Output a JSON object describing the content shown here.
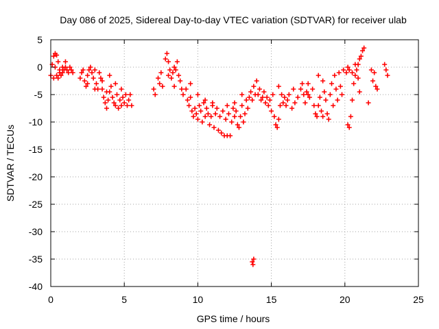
{
  "chart_data": {
    "type": "scatter",
    "title": "Day 086 of 2025, Sidereal Day-to-day VTEC variation (SDTVAR) for receiver ulab",
    "xlabel": "GPS time / hours",
    "ylabel": "SDTVAR / TECUs",
    "xlim": [
      0,
      25
    ],
    "ylim": [
      -40,
      5
    ],
    "xticks": [
      0,
      5,
      10,
      15,
      20,
      25
    ],
    "xtick_labels": [
      "0",
      "5",
      "10",
      "15",
      "20",
      "25"
    ],
    "yticks": [
      5,
      0,
      -5,
      -10,
      -15,
      -20,
      -25,
      -30,
      -35,
      -40
    ],
    "ytick_labels": [
      "5",
      "0",
      "-5",
      "-10",
      "-15",
      "-20",
      "-25",
      "-30",
      "-35",
      "-40"
    ],
    "grid": true,
    "marker": "plus",
    "color": "#ff0000",
    "series": [
      {
        "name": "SDTVAR",
        "points": [
          [
            0.0,
            -1.5
          ],
          [
            0.1,
            0.5
          ],
          [
            0.2,
            2.0
          ],
          [
            0.3,
            2.5
          ],
          [
            0.4,
            2.2
          ],
          [
            0.5,
            1.0
          ],
          [
            0.6,
            -0.5
          ],
          [
            0.7,
            -1.5
          ],
          [
            0.8,
            -1.0
          ],
          [
            0.9,
            -0.5
          ],
          [
            1.0,
            0.0
          ],
          [
            1.1,
            -0.5
          ],
          [
            1.2,
            -1.0
          ],
          [
            1.3,
            0.0
          ],
          [
            1.4,
            -0.5
          ],
          [
            1.5,
            -1.0
          ],
          [
            0.2,
            -2.0
          ],
          [
            0.4,
            -1.5
          ],
          [
            0.6,
            -1.0
          ],
          [
            0.8,
            0.0
          ],
          [
            1.0,
            1.0
          ],
          [
            0.3,
            0.0
          ],
          [
            0.5,
            -2.0
          ],
          [
            2.0,
            -2.0
          ],
          [
            2.1,
            -1.0
          ],
          [
            2.2,
            -0.5
          ],
          [
            2.3,
            -2.5
          ],
          [
            2.4,
            -3.5
          ],
          [
            2.5,
            -1.5
          ],
          [
            2.6,
            -0.5
          ],
          [
            2.7,
            0.0
          ],
          [
            2.8,
            -1.0
          ],
          [
            2.9,
            -2.0
          ],
          [
            3.0,
            -0.5
          ],
          [
            3.1,
            -3.0
          ],
          [
            3.2,
            -4.0
          ],
          [
            3.3,
            -1.0
          ],
          [
            3.4,
            -2.0
          ],
          [
            3.5,
            -4.0
          ],
          [
            3.6,
            -5.5
          ],
          [
            3.7,
            -6.5
          ],
          [
            3.8,
            -7.5
          ],
          [
            3.9,
            -6.0
          ],
          [
            4.0,
            -4.5
          ],
          [
            4.1,
            -3.5
          ],
          [
            4.2,
            -5.5
          ],
          [
            4.3,
            -6.5
          ],
          [
            4.4,
            -7.0
          ],
          [
            4.5,
            -5.0
          ],
          [
            4.6,
            -7.5
          ],
          [
            4.7,
            -6.0
          ],
          [
            4.8,
            -7.0
          ],
          [
            4.9,
            -5.5
          ],
          [
            5.0,
            -6.5
          ],
          [
            5.1,
            -5.0
          ],
          [
            5.2,
            -7.0
          ],
          [
            5.3,
            -6.0
          ],
          [
            5.4,
            -5.0
          ],
          [
            5.5,
            -7.0
          ],
          [
            3.0,
            -4.0
          ],
          [
            3.5,
            -2.5
          ],
          [
            4.0,
            -1.5
          ],
          [
            4.4,
            -3.0
          ],
          [
            4.8,
            -4.0
          ],
          [
            2.5,
            -3.0
          ],
          [
            3.8,
            -4.5
          ],
          [
            7.0,
            -4.0
          ],
          [
            7.1,
            -5.0
          ],
          [
            7.3,
            -2.0
          ],
          [
            7.5,
            -1.0
          ],
          [
            7.6,
            -3.5
          ],
          [
            7.8,
            1.5
          ],
          [
            7.9,
            2.5
          ],
          [
            8.0,
            1.0
          ],
          [
            8.1,
            -0.5
          ],
          [
            8.2,
            -2.0
          ],
          [
            8.3,
            -1.0
          ],
          [
            8.4,
            0.0
          ],
          [
            8.5,
            -0.5
          ],
          [
            8.6,
            1.0
          ],
          [
            8.7,
            -1.5
          ],
          [
            8.8,
            -2.5
          ],
          [
            8.9,
            -4.0
          ],
          [
            7.4,
            -3.0
          ],
          [
            8.0,
            -1.5
          ],
          [
            8.4,
            -3.5
          ],
          [
            9.0,
            -5.0
          ],
          [
            9.2,
            -4.0
          ],
          [
            9.3,
            -6.0
          ],
          [
            9.4,
            -7.0
          ],
          [
            9.5,
            -5.5
          ],
          [
            9.6,
            -8.0
          ],
          [
            9.7,
            -9.0
          ],
          [
            9.8,
            -7.5
          ],
          [
            9.9,
            -8.5
          ],
          [
            10.0,
            -9.5
          ],
          [
            10.1,
            -7.0
          ],
          [
            10.2,
            -8.0
          ],
          [
            10.3,
            -10.0
          ],
          [
            10.4,
            -6.5
          ],
          [
            10.5,
            -9.0
          ],
          [
            10.6,
            -7.5
          ],
          [
            10.7,
            -8.5
          ],
          [
            10.8,
            -10.5
          ],
          [
            10.9,
            -9.0
          ],
          [
            11.0,
            -7.0
          ],
          [
            11.1,
            -11.0
          ],
          [
            11.2,
            -8.5
          ],
          [
            11.3,
            -7.5
          ],
          [
            11.4,
            -11.5
          ],
          [
            11.5,
            -9.0
          ],
          [
            11.6,
            -12.0
          ],
          [
            11.7,
            -8.0
          ],
          [
            11.8,
            -12.5
          ],
          [
            11.9,
            -9.5
          ],
          [
            12.0,
            -12.5
          ],
          [
            12.1,
            -8.5
          ],
          [
            12.2,
            -12.5
          ],
          [
            12.3,
            -10.0
          ],
          [
            12.4,
            -7.5
          ],
          [
            12.5,
            -9.0
          ],
          [
            12.6,
            -8.0
          ],
          [
            12.7,
            -10.5
          ],
          [
            12.8,
            -11.0
          ],
          [
            12.9,
            -9.0
          ],
          [
            13.0,
            -7.0
          ],
          [
            13.1,
            -10.0
          ],
          [
            13.2,
            -8.5
          ],
          [
            13.3,
            -6.0
          ],
          [
            13.4,
            -7.5
          ],
          [
            13.5,
            -5.5
          ],
          [
            13.6,
            -4.5
          ],
          [
            13.7,
            -6.0
          ],
          [
            13.8,
            -3.5
          ],
          [
            13.9,
            -5.0
          ],
          [
            14.0,
            -2.5
          ],
          [
            9.5,
            -3.0
          ],
          [
            10.0,
            -5.0
          ],
          [
            10.5,
            -6.0
          ],
          [
            11.0,
            -6.5
          ],
          [
            12.0,
            -7.0
          ],
          [
            12.5,
            -6.5
          ],
          [
            13.0,
            -5.0
          ],
          [
            13.7,
            -35.5
          ],
          [
            13.8,
            -35.0
          ],
          [
            13.75,
            -36.0
          ],
          [
            14.1,
            -5.0
          ],
          [
            14.2,
            -4.0
          ],
          [
            14.3,
            -6.0
          ],
          [
            14.4,
            -5.5
          ],
          [
            14.5,
            -4.5
          ],
          [
            14.6,
            -6.5
          ],
          [
            14.7,
            -5.5
          ],
          [
            14.8,
            -7.0
          ],
          [
            14.9,
            -6.0
          ],
          [
            15.0,
            -8.0
          ],
          [
            15.1,
            -5.0
          ],
          [
            15.2,
            -9.0
          ],
          [
            15.3,
            -10.5
          ],
          [
            15.4,
            -11.0
          ],
          [
            15.5,
            -9.5
          ],
          [
            15.6,
            -7.0
          ],
          [
            15.7,
            -5.0
          ],
          [
            15.8,
            -6.5
          ],
          [
            15.9,
            -5.5
          ],
          [
            16.0,
            -7.0
          ],
          [
            16.1,
            -6.0
          ],
          [
            16.2,
            -5.0
          ],
          [
            16.4,
            -7.5
          ],
          [
            16.6,
            -6.5
          ],
          [
            16.8,
            -5.5
          ],
          [
            17.0,
            -4.0
          ],
          [
            17.1,
            -3.0
          ],
          [
            17.2,
            -5.0
          ],
          [
            17.3,
            -6.5
          ],
          [
            17.4,
            -4.5
          ],
          [
            17.5,
            -3.0
          ],
          [
            17.6,
            -5.5
          ],
          [
            17.8,
            -4.0
          ],
          [
            17.9,
            -7.0
          ],
          [
            18.0,
            -8.5
          ],
          [
            18.1,
            -9.0
          ],
          [
            18.2,
            -7.0
          ],
          [
            18.3,
            -5.5
          ],
          [
            18.4,
            -8.0
          ],
          [
            18.5,
            -9.0
          ],
          [
            18.6,
            -4.5
          ],
          [
            18.7,
            -6.0
          ],
          [
            18.8,
            -8.5
          ],
          [
            18.9,
            -9.5
          ],
          [
            19.0,
            -5.0
          ],
          [
            19.1,
            -3.0
          ],
          [
            19.2,
            -7.0
          ],
          [
            19.3,
            -1.5
          ],
          [
            19.4,
            -4.0
          ],
          [
            19.5,
            -6.0
          ],
          [
            19.6,
            -1.0
          ],
          [
            19.7,
            -3.5
          ],
          [
            19.8,
            -5.0
          ],
          [
            19.9,
            -0.5
          ],
          [
            18.2,
            -1.5
          ],
          [
            18.5,
            -2.5
          ],
          [
            17.5,
            -5.0
          ],
          [
            16.5,
            -4.0
          ],
          [
            15.5,
            -3.5
          ],
          [
            20.2,
            -10.5
          ],
          [
            20.3,
            -11.0
          ],
          [
            20.4,
            -9.0
          ],
          [
            20.5,
            -6.0
          ],
          [
            20.6,
            -3.0
          ],
          [
            20.7,
            -1.5
          ],
          [
            20.8,
            -0.5
          ],
          [
            20.9,
            0.5
          ],
          [
            21.0,
            1.5
          ],
          [
            21.1,
            2.0
          ],
          [
            21.2,
            3.0
          ],
          [
            21.3,
            3.5
          ],
          [
            20.1,
            -1.0
          ],
          [
            20.2,
            0.0
          ],
          [
            20.3,
            -0.5
          ],
          [
            20.5,
            -1.0
          ],
          [
            20.7,
            0.5
          ],
          [
            20.9,
            -2.0
          ],
          [
            21.0,
            -4.5
          ],
          [
            21.6,
            -6.5
          ],
          [
            21.8,
            -0.5
          ],
          [
            22.0,
            -1.0
          ],
          [
            22.1,
            -3.5
          ],
          [
            22.2,
            -4.0
          ],
          [
            21.9,
            -2.5
          ],
          [
            22.8,
            -0.5
          ],
          [
            22.9,
            -1.5
          ],
          [
            22.7,
            0.5
          ]
        ]
      }
    ]
  }
}
